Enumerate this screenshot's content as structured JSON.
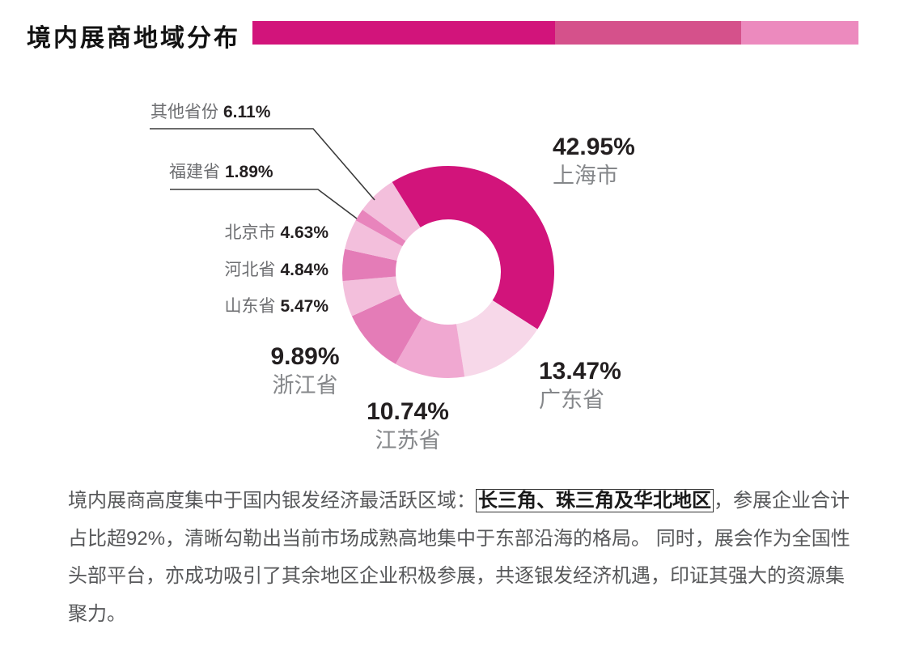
{
  "header": {
    "title": "境内展商地域分布",
    "accent_bar": {
      "colors": [
        "#D2147B",
        "#D5518B",
        "#EC8ABE"
      ],
      "widths_pct": [
        49.9,
        30.8,
        19.3
      ]
    }
  },
  "chart_data": {
    "type": "pie",
    "donut": true,
    "title": "境内展商地域分布",
    "unit": "%",
    "start_angle_deg": -32,
    "direction": "clockwise",
    "legend_position": "around-labels",
    "segments": [
      {
        "label": "上海市",
        "value": 42.95,
        "pct": "42.95%",
        "color": "#D2147B"
      },
      {
        "label": "广东省",
        "value": 13.47,
        "pct": "13.47%",
        "color": "#F7D8E9"
      },
      {
        "label": "江苏省",
        "value": 10.74,
        "pct": "10.74%",
        "color": "#F0A8D1"
      },
      {
        "label": "浙江省",
        "value": 9.89,
        "pct": "9.89%",
        "color": "#E47CB7"
      },
      {
        "label": "山东省",
        "value": 5.47,
        "pct": "5.47%",
        "color": "#F3BFDC"
      },
      {
        "label": "河北省",
        "value": 4.84,
        "pct": "4.84%",
        "color": "#E47CB7"
      },
      {
        "label": "北京市",
        "value": 4.63,
        "pct": "4.63%",
        "color": "#F3BFDC"
      },
      {
        "label": "福建省",
        "value": 1.89,
        "pct": "1.89%",
        "color": "#E884BC"
      },
      {
        "label": "其他省份",
        "value": 6.11,
        "pct": "6.11%",
        "color": "#F3BFDC"
      }
    ]
  },
  "paragraph": {
    "pre": "境内展商高度集中于国内银发经济最活跃区域：",
    "highlight": "长三角、珠三角及华北地区",
    "post": "，参展企业合计占比超92%，清晰勾勒出当前市场成熟高地集中于东部沿海的格局。 同时，展会作为全国性头部平台，亦成功吸引了其余地区企业积极参展，共逐银发经济机遇，印证其强大的资源集聚力。"
  }
}
